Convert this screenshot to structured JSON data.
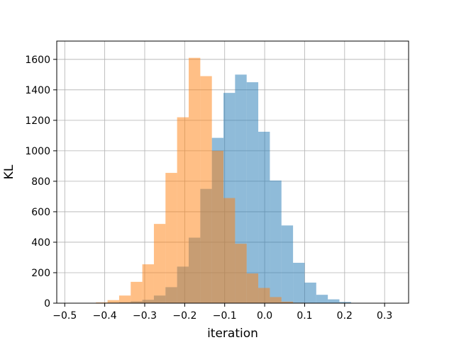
{
  "chart_data": {
    "type": "histogram",
    "title": "",
    "xlabel": "iteration",
    "ylabel": "KL",
    "xlim": [
      -0.52,
      0.36
    ],
    "ylim": [
      0,
      1720
    ],
    "xticks": [
      -0.5,
      -0.4,
      -0.3,
      -0.2,
      -0.1,
      0.0,
      0.1,
      0.2,
      0.3
    ],
    "xtick_labels": [
      "−0.5",
      "−0.4",
      "−0.3",
      "−0.2",
      "−0.1",
      "0.0",
      "0.1",
      "0.2",
      "0.3"
    ],
    "yticks": [
      0,
      200,
      400,
      600,
      800,
      1000,
      1200,
      1400,
      1600
    ],
    "yticks_labels": [
      "0",
      "200",
      "400",
      "600",
      "800",
      "1000",
      "1200",
      "1400",
      "1600"
    ],
    "grid": true,
    "legend": "none",
    "series": [
      {
        "color": "#1f77b4",
        "alpha": 0.5,
        "bin_start": -0.48,
        "bin_width": 0.029,
        "counts": [
          1,
          1,
          2,
          4,
          7,
          12,
          22,
          50,
          105,
          240,
          430,
          750,
          1085,
          1380,
          1500,
          1450,
          1125,
          805,
          510,
          265,
          135,
          55,
          25,
          8,
          2,
          1
        ]
      },
      {
        "color": "#ff7f0e",
        "alpha": 0.5,
        "bin_start": -0.48,
        "bin_width": 0.029,
        "counts": [
          0,
          0,
          5,
          20,
          50,
          140,
          255,
          520,
          855,
          1220,
          1610,
          1490,
          1000,
          690,
          390,
          195,
          100,
          40,
          10,
          3,
          0,
          0,
          0,
          0,
          0,
          0
        ]
      }
    ]
  }
}
